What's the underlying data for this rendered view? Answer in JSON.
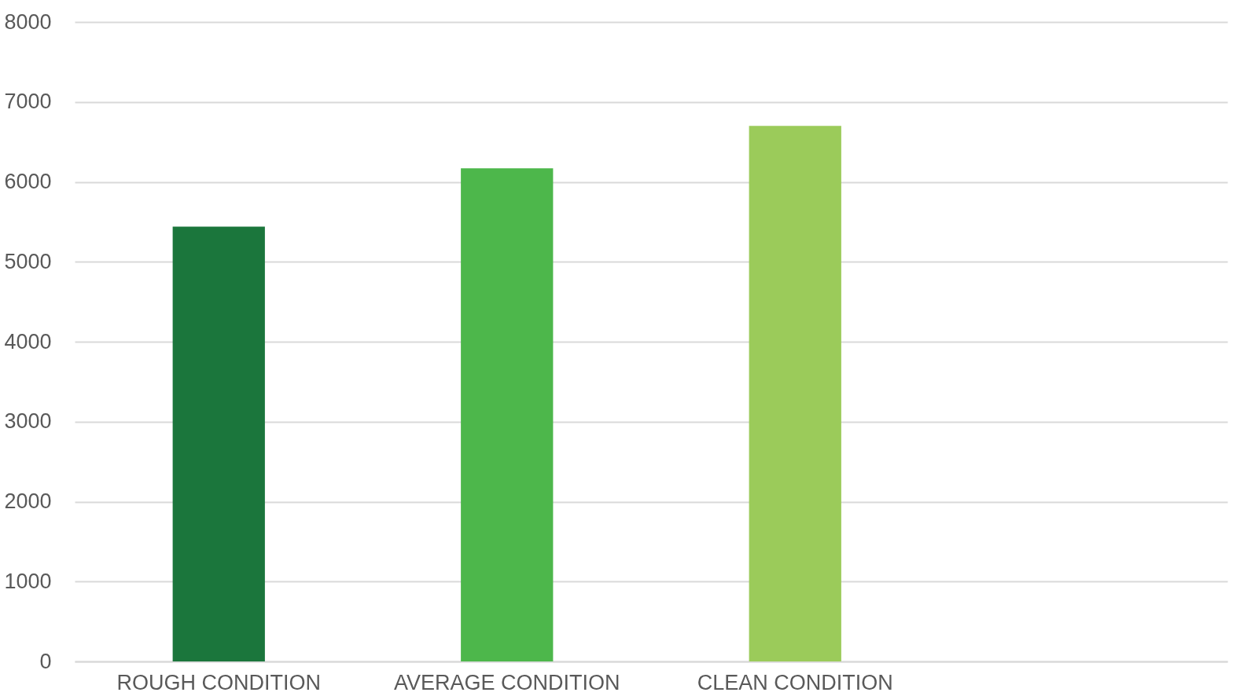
{
  "chart_data": {
    "type": "bar",
    "categories": [
      "ROUGH CONDITION",
      "AVERAGE CONDITION",
      "CLEAN CONDITION",
      null
    ],
    "values": [
      5440,
      6170,
      6700,
      null
    ],
    "colors": [
      "#1b763c",
      "#4db74b",
      "#9bcb5a",
      null
    ],
    "ylim": [
      0,
      8000
    ],
    "yticks": [
      0,
      1000,
      2000,
      3000,
      4000,
      5000,
      6000,
      7000,
      8000
    ],
    "grid": "y",
    "legend": false
  }
}
